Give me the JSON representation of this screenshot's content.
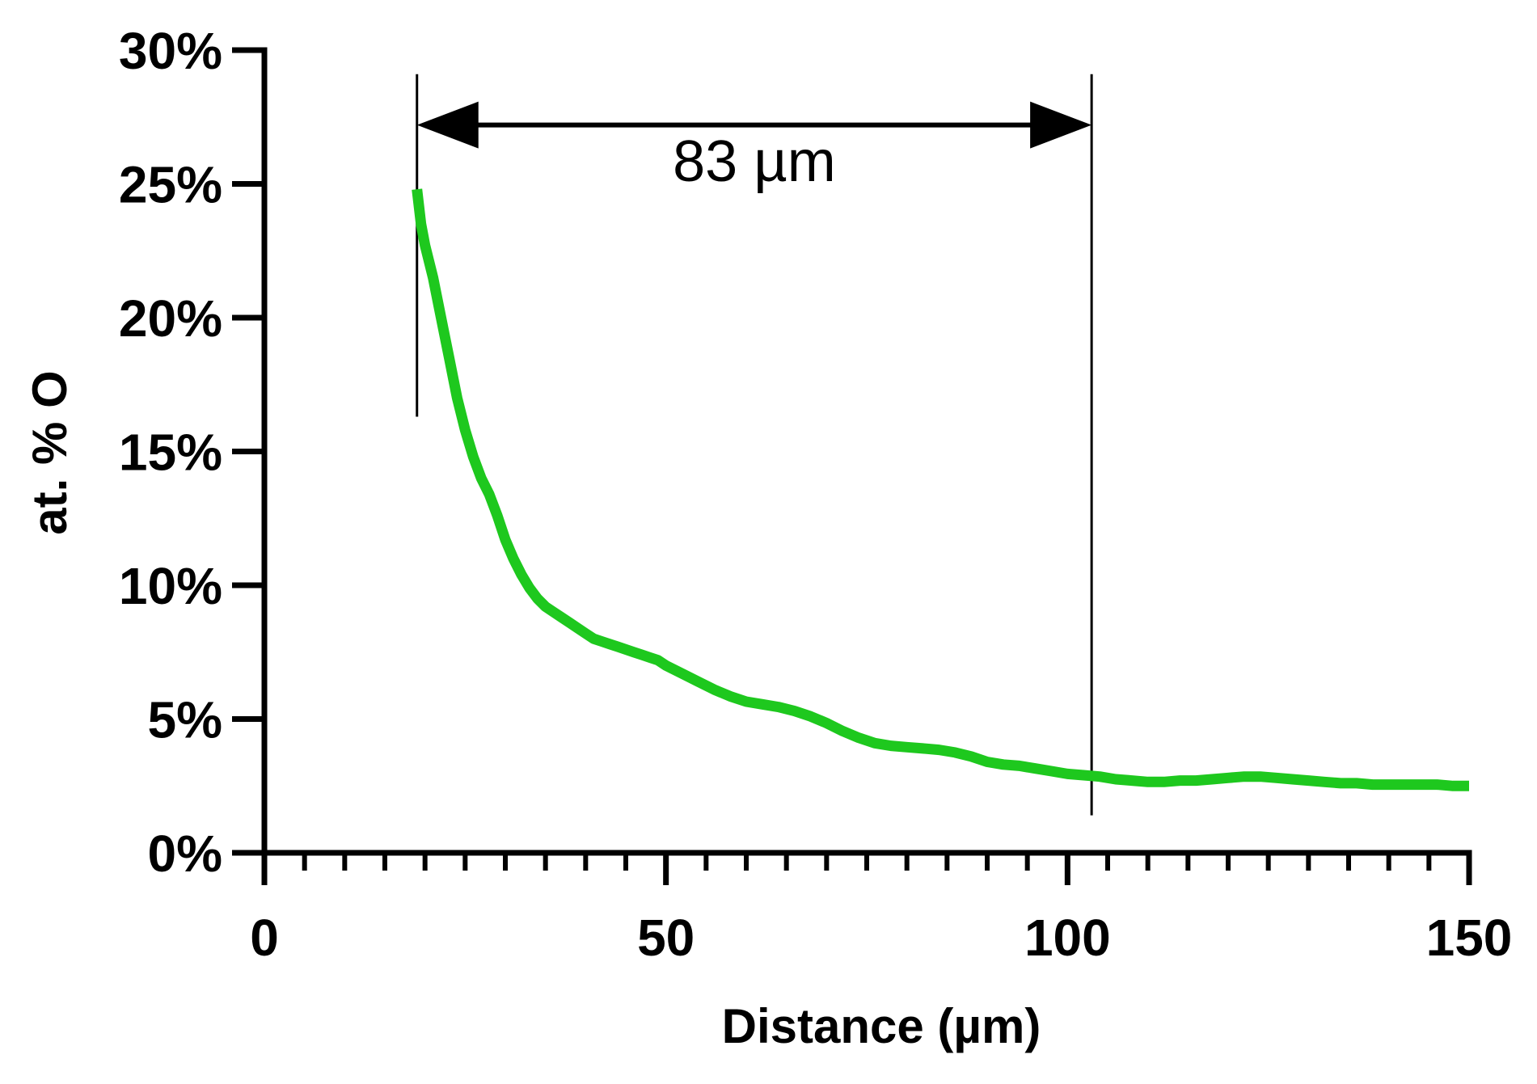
{
  "chart_data": {
    "type": "line",
    "title": "",
    "xlabel": "Distance (µm)",
    "ylabel": "at. % O",
    "xlim": [
      0,
      150
    ],
    "ylim": [
      0,
      30
    ],
    "x_ticks": [
      0,
      50,
      100,
      150
    ],
    "x_tick_labels": [
      "0",
      "50",
      "100",
      "150"
    ],
    "x_minor_step": 5,
    "y_ticks": [
      0,
      5,
      10,
      15,
      20,
      25,
      30
    ],
    "y_tick_labels": [
      "0%",
      "5%",
      "10%",
      "15%",
      "20%",
      "25%",
      "30%"
    ],
    "grid": false,
    "legend": "none",
    "series": [
      {
        "color": "#1ec81e",
        "x": [
          19,
          19.5,
          20,
          21,
          22,
          23,
          24,
          25,
          26,
          27,
          28,
          29,
          30,
          31,
          32,
          33,
          34,
          35,
          36,
          37,
          38,
          39,
          40,
          41,
          42,
          43,
          44,
          45,
          46,
          47,
          48,
          49,
          50,
          52,
          54,
          56,
          58,
          60,
          62,
          64,
          66,
          68,
          70,
          72,
          74,
          76,
          78,
          80,
          82,
          84,
          86,
          88,
          90,
          92,
          94,
          96,
          98,
          100,
          102,
          104,
          106,
          108,
          110,
          112,
          114,
          116,
          118,
          120,
          122,
          124,
          126,
          128,
          130,
          132,
          134,
          136,
          138,
          140,
          142,
          144,
          146,
          148,
          150
        ],
        "y": [
          24.8,
          23.5,
          22.7,
          21.5,
          20.0,
          18.5,
          17.0,
          15.8,
          14.8,
          14.0,
          13.4,
          12.6,
          11.7,
          11.0,
          10.4,
          9.9,
          9.5,
          9.2,
          9.0,
          8.8,
          8.6,
          8.4,
          8.2,
          8.0,
          7.9,
          7.8,
          7.7,
          7.6,
          7.5,
          7.4,
          7.3,
          7.2,
          7.0,
          6.7,
          6.4,
          6.1,
          5.85,
          5.65,
          5.55,
          5.45,
          5.3,
          5.1,
          4.85,
          4.55,
          4.3,
          4.1,
          4.0,
          3.95,
          3.9,
          3.85,
          3.75,
          3.6,
          3.4,
          3.3,
          3.25,
          3.15,
          3.05,
          2.95,
          2.9,
          2.85,
          2.75,
          2.7,
          2.65,
          2.65,
          2.7,
          2.7,
          2.75,
          2.8,
          2.85,
          2.85,
          2.8,
          2.75,
          2.7,
          2.65,
          2.6,
          2.6,
          2.55,
          2.55,
          2.55,
          2.55,
          2.55,
          2.5,
          2.5
        ]
      }
    ],
    "annotations": {
      "vertical_lines": [
        {
          "x": 19,
          "y_from": 16.3,
          "y_to": 29.1
        },
        {
          "x": 103,
          "y_from": 1.4,
          "y_to": 29.1
        }
      ],
      "double_arrow": {
        "x_from": 19,
        "x_to": 103,
        "y": 27.2
      },
      "label": "83 µm",
      "label_position": {
        "x": 61,
        "y": 25.1
      }
    }
  }
}
